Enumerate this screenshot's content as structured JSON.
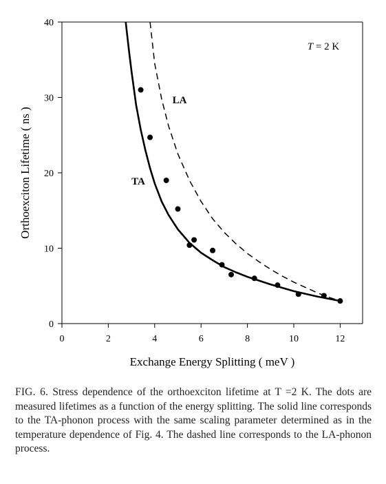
{
  "chart_data": {
    "type": "scatter",
    "xlabel": "Exchange Energy Splitting ( meV )",
    "ylabel": "Orthoexciton Lifetime ( ns )",
    "xlim": [
      0,
      13
    ],
    "ylim": [
      0,
      40
    ],
    "xticks": [
      0,
      2,
      4,
      6,
      8,
      10,
      12
    ],
    "yticks": [
      0,
      10,
      20,
      30,
      40
    ],
    "grid": false,
    "legend": "none",
    "annotation": "T = 2 K",
    "series": [
      {
        "name": "",
        "kind": "points",
        "x": [
          3.4,
          3.8,
          4.5,
          5.0,
          5.5,
          5.7,
          6.5,
          6.9,
          7.3,
          8.3,
          9.3,
          10.2,
          11.3,
          12.0
        ],
        "y": [
          31.0,
          24.7,
          19.0,
          15.2,
          10.4,
          11.1,
          9.7,
          7.8,
          6.5,
          6.0,
          5.1,
          3.9,
          3.7,
          3.0
        ]
      },
      {
        "name": "TA",
        "kind": "solid",
        "x": [
          2.75,
          2.9,
          3.0,
          3.2,
          3.4,
          3.6,
          3.8,
          4.0,
          4.3,
          4.6,
          5.0,
          5.5,
          6.0,
          6.5,
          7.0,
          7.5,
          8.0,
          9.0,
          10.0,
          11.0,
          12.0
        ],
        "y": [
          40.0,
          36.0,
          33.5,
          29.0,
          25.7,
          23.0,
          20.6,
          18.6,
          16.2,
          14.4,
          12.5,
          10.7,
          9.4,
          8.4,
          7.5,
          6.8,
          6.2,
          5.2,
          4.3,
          3.6,
          3.0
        ]
      },
      {
        "name": "LA",
        "kind": "dashed",
        "x": [
          3.8,
          4.0,
          4.3,
          4.6,
          5.0,
          5.5,
          6.0,
          6.5,
          7.0,
          7.5,
          8.0,
          8.5,
          9.0,
          9.5,
          10.0,
          10.5,
          11.0,
          11.5,
          12.0
        ],
        "y": [
          40.0,
          34.5,
          29.8,
          26.2,
          22.5,
          19.0,
          16.2,
          13.9,
          12.1,
          10.6,
          9.3,
          8.2,
          7.2,
          6.3,
          5.5,
          4.8,
          4.1,
          3.5,
          3.0
        ]
      }
    ],
    "labels": {
      "ta": "TA",
      "la": "LA"
    }
  },
  "caption": {
    "label": "FIG. 6.",
    "text": "Stress dependence of the orthoexciton lifetime at T =2 K. The dots are measured lifetimes as a function of the energy splitting. The solid line corresponds to the TA-phonon process with the same scaling parameter determined as in the temperature dependence of Fig. 4. The dashed line corresponds to the LA-phonon process."
  }
}
